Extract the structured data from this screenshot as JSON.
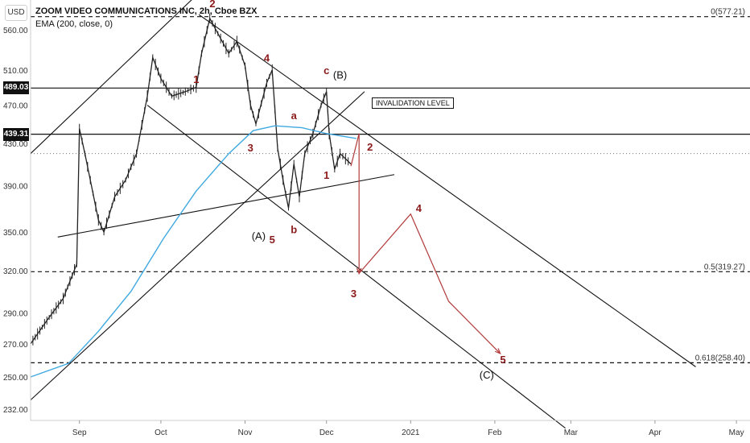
{
  "header": {
    "title": "ZOOM VIDEO COMMUNICATIONS INC, 2h, Cboe BZX",
    "indicator": "EMA (200, close, 0)"
  },
  "currency": "USD",
  "price_tags": [
    {
      "value": "489.03",
      "price": 489.03
    },
    {
      "value": "439.31",
      "price": 439.31
    }
  ],
  "invalidation_label": "INVALIDATION LEVEL",
  "chart_data": {
    "type": "line",
    "title": "ZOOM VIDEO COMMUNICATIONS INC, 2h, Cboe BZX",
    "y_ticks": [
      232,
      250,
      270,
      290,
      320,
      350,
      390,
      430,
      470,
      510,
      560
    ],
    "y_tick_labels": [
      "232.00",
      "250.00",
      "270.00",
      "290.00",
      "320.00",
      "350.00",
      "390.00",
      "430.00",
      "470.00",
      "510.00",
      "560.00"
    ],
    "x_ticks": [
      "2020-09-01",
      "2020-10-01",
      "2020-11-01",
      "2020-12-01",
      "2021-01-01",
      "2021-02-01",
      "2021-03-01",
      "2021-04-01",
      "2021-05-01"
    ],
    "x_tick_labels": [
      "Sep",
      "Oct",
      "Nov",
      "Dec",
      "2021",
      "Feb",
      "Mar",
      "Apr",
      "May"
    ],
    "xlim": [
      "2020-08-14",
      "2021-05-06"
    ],
    "ylim": [
      226,
      600
    ],
    "scale": "log",
    "price_path": [
      [
        "2020-08-14",
        270
      ],
      [
        "2020-08-20",
        285
      ],
      [
        "2020-08-26",
        300
      ],
      [
        "2020-08-31",
        325
      ],
      [
        "2020-09-01",
        445
      ],
      [
        "2020-09-03",
        420
      ],
      [
        "2020-09-05",
        395
      ],
      [
        "2020-09-08",
        360
      ],
      [
        "2020-09-10",
        350
      ],
      [
        "2020-09-14",
        380
      ],
      [
        "2020-09-18",
        395
      ],
      [
        "2020-09-22",
        420
      ],
      [
        "2020-09-26",
        480
      ],
      [
        "2020-09-28",
        525
      ],
      [
        "2020-10-01",
        500
      ],
      [
        "2020-10-05",
        480
      ],
      [
        "2020-10-10",
        485
      ],
      [
        "2020-10-14",
        490
      ],
      [
        "2020-10-16",
        530
      ],
      [
        "2020-10-19",
        575
      ],
      [
        "2020-10-22",
        555
      ],
      [
        "2020-10-26",
        530
      ],
      [
        "2020-10-29",
        545
      ],
      [
        "2020-11-01",
        515
      ],
      [
        "2020-11-03",
        470
      ],
      [
        "2020-11-05",
        450
      ],
      [
        "2020-11-09",
        495
      ],
      [
        "2020-11-11",
        510
      ],
      [
        "2020-11-13",
        425
      ],
      [
        "2020-11-15",
        395
      ],
      [
        "2020-11-17",
        370
      ],
      [
        "2020-11-19",
        410
      ],
      [
        "2020-11-21",
        380
      ],
      [
        "2020-11-23",
        420
      ],
      [
        "2020-11-26",
        440
      ],
      [
        "2020-11-29",
        470
      ],
      [
        "2020-12-01",
        485
      ],
      [
        "2020-12-02",
        440
      ],
      [
        "2020-12-04",
        405
      ],
      [
        "2020-12-06",
        420
      ],
      [
        "2020-12-10",
        410
      ]
    ],
    "ema200": [
      [
        "2020-08-14",
        250
      ],
      [
        "2020-08-28",
        258
      ],
      [
        "2020-09-08",
        278
      ],
      [
        "2020-09-20",
        305
      ],
      [
        "2020-10-02",
        345
      ],
      [
        "2020-10-14",
        385
      ],
      [
        "2020-10-26",
        420
      ],
      [
        "2020-11-04",
        443
      ],
      [
        "2020-11-12",
        448
      ],
      [
        "2020-11-22",
        446
      ],
      [
        "2020-12-01",
        440
      ],
      [
        "2020-12-12",
        435
      ]
    ],
    "horizontal_levels": [
      {
        "price": 577.21,
        "style": "dashed",
        "label": "0(577.21)"
      },
      {
        "price": 489.03,
        "style": "solid",
        "label": ""
      },
      {
        "price": 439.31,
        "style": "solid",
        "label": ""
      },
      {
        "price": 420,
        "style": "dotted",
        "label": ""
      },
      {
        "price": 319.27,
        "style": "dashed",
        "label": "0.5(319.27)"
      },
      {
        "price": 258.4,
        "style": "dashed",
        "label": "0.618(258.40)"
      }
    ],
    "trend_lines": [
      {
        "from": [
          "2020-08-14",
          420
        ],
        "to": [
          "2020-10-15",
          610
        ]
      },
      {
        "from": [
          "2020-08-24",
          346
        ],
        "to": [
          "2020-12-26",
          400
        ]
      },
      {
        "from": [
          "2020-10-15",
          580
        ],
        "to": [
          "2021-04-16",
          256
        ]
      },
      {
        "from": [
          "2020-09-26",
          470
        ],
        "to": [
          "2021-02-27",
          222
        ]
      },
      {
        "from": [
          "2020-08-14",
          237
        ],
        "to": [
          "2020-12-15",
          485
        ]
      }
    ],
    "projection": [
      [
        "2020-12-10",
        408
      ],
      [
        "2020-12-13",
        440
      ],
      [
        "2020-12-13",
        318
      ],
      [
        "2021-01-01",
        365
      ],
      [
        "2021-01-15",
        298
      ],
      [
        "2021-02-03",
        264
      ]
    ],
    "wave_labels": [
      {
        "text": "2",
        "x": "2020-10-20",
        "y": 590,
        "color": "red"
      },
      {
        "text": "1",
        "x": "2020-10-14",
        "y": 495,
        "color": "red"
      },
      {
        "text": "4",
        "x": "2020-11-09",
        "y": 520,
        "color": "red"
      },
      {
        "text": "3",
        "x": "2020-11-03",
        "y": 422,
        "color": "red"
      },
      {
        "text": "a",
        "x": "2020-11-19",
        "y": 455,
        "color": "red"
      },
      {
        "text": "c",
        "x": "2020-12-01",
        "y": 505,
        "color": "red"
      },
      {
        "text": "(B)",
        "x": "2020-12-06",
        "y": 500,
        "color": "black"
      },
      {
        "text": "1",
        "x": "2020-12-01",
        "y": 396,
        "color": "red"
      },
      {
        "text": "2",
        "x": "2020-12-17",
        "y": 423,
        "color": "red"
      },
      {
        "text": "(A)",
        "x": "2020-11-06",
        "y": 344,
        "color": "black"
      },
      {
        "text": "5",
        "x": "2020-11-11",
        "y": 341,
        "color": "red"
      },
      {
        "text": "b",
        "x": "2020-11-19",
        "y": 349,
        "color": "red"
      },
      {
        "text": "4",
        "x": "2021-01-04",
        "y": 367,
        "color": "red"
      },
      {
        "text": "3",
        "x": "2020-12-11",
        "y": 301,
        "color": "red"
      },
      {
        "text": "5",
        "x": "2021-02-04",
        "y": 258,
        "color": "red"
      },
      {
        "text": "(C)",
        "x": "2021-01-29",
        "y": 249,
        "color": "black"
      }
    ]
  }
}
